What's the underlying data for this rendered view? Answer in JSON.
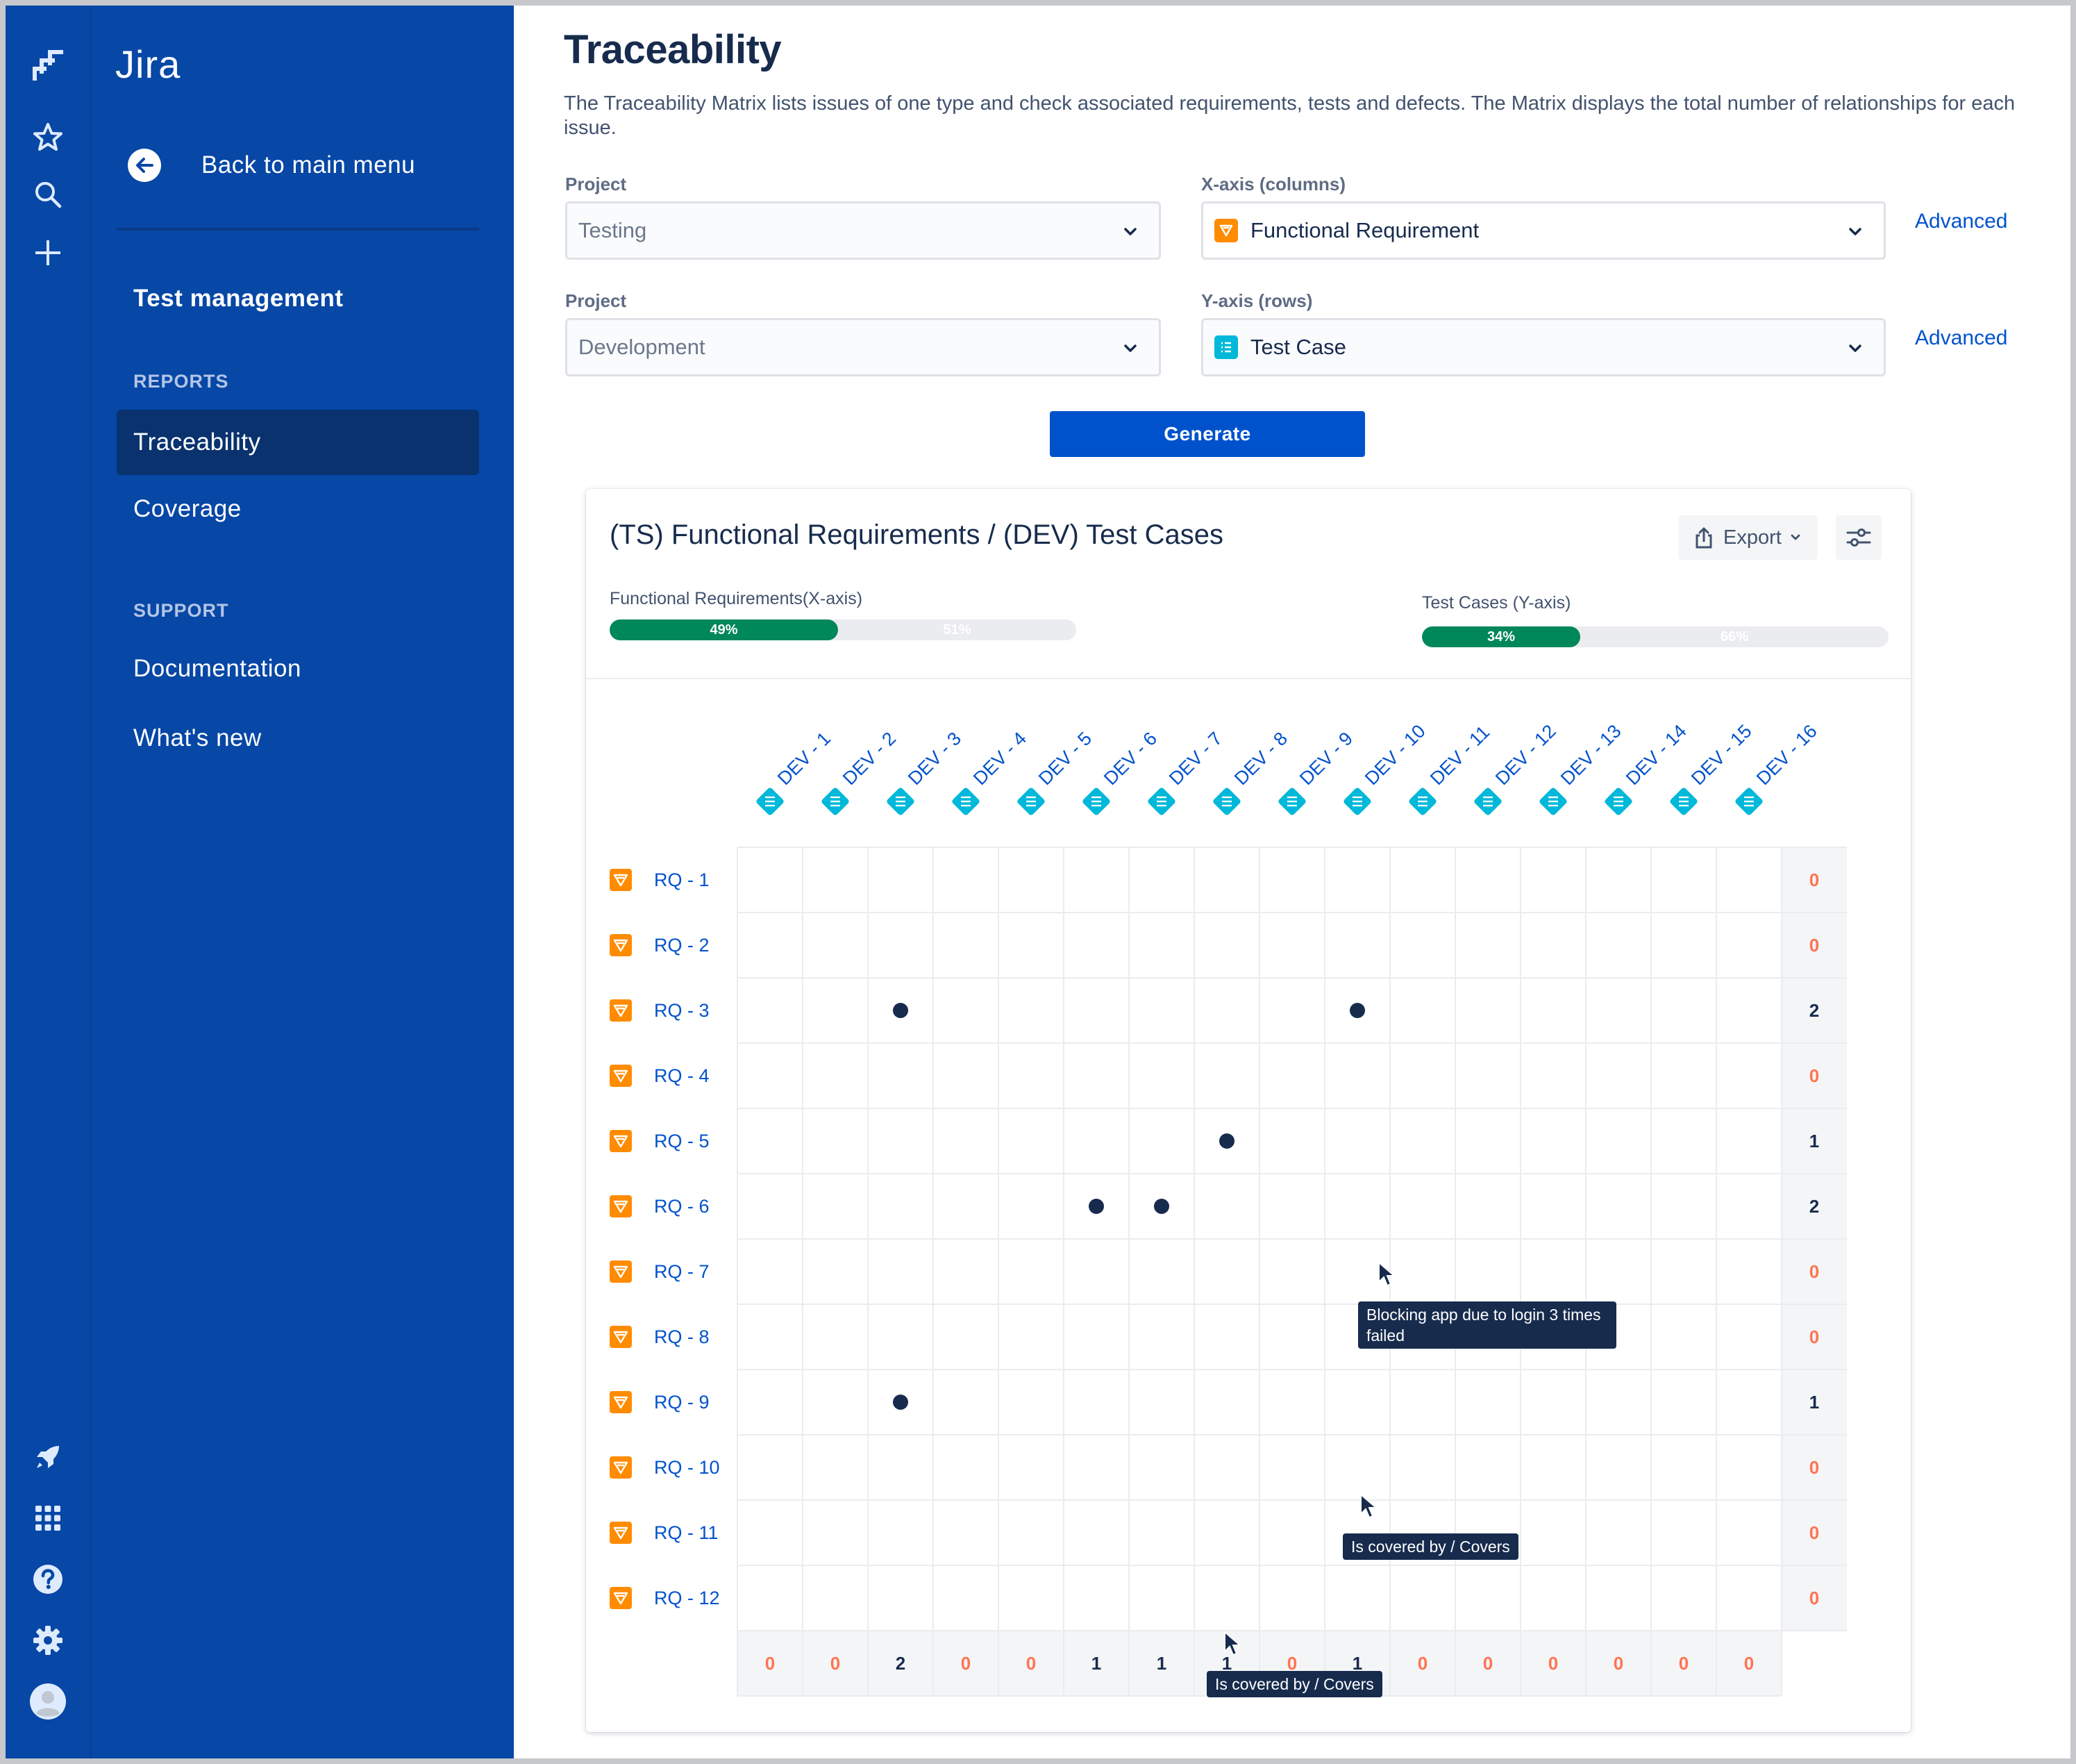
{
  "app": {
    "product_name": "Jira",
    "accent": "#0747a6",
    "primary": "#0052cc"
  },
  "rail": {
    "top_icons": [
      "jira-logo-icon",
      "star-icon",
      "search-icon",
      "plus-icon"
    ],
    "bottom_icons": [
      "rocket-icon",
      "app-switcher-icon",
      "help-icon",
      "gear-icon",
      "avatar-icon"
    ]
  },
  "sidebar": {
    "back_label": "Back to main menu",
    "title": "Test management",
    "reports_heading": "REPORTS",
    "reports": [
      {
        "label": "Traceability",
        "active": true
      },
      {
        "label": "Coverage",
        "active": false
      }
    ],
    "support_heading": "SUPPORT",
    "support": [
      {
        "label": "Documentation"
      },
      {
        "label": "What's new"
      }
    ]
  },
  "page": {
    "title": "Traceability",
    "description": "The Traceability Matrix lists issues of one type and check associated requirements, tests and defects. The Matrix displays the total number of relationships for each issue."
  },
  "form": {
    "project1": {
      "label": "Project",
      "value": "Testing"
    },
    "xaxis": {
      "label": "X-axis (columns)",
      "value": "Functional Requirement",
      "icon": "functional-requirement-icon",
      "icon_color": "#ff8b00"
    },
    "project2": {
      "label": "Project",
      "value": "Development"
    },
    "yaxis": {
      "label": "Y-axis (rows)",
      "value": "Test Case",
      "icon": "test-case-icon",
      "icon_color": "#00b8d9"
    },
    "advanced_label": "Advanced",
    "generate_label": "Generate"
  },
  "report": {
    "title": "(TS) Functional Requirements / (DEV) Test Cases",
    "export_label": "Export",
    "x_progress": {
      "label": "Functional Requirements(X-axis)",
      "covered_pct": 49,
      "covered_text": "49%",
      "uncovered_text": "51%"
    },
    "y_progress": {
      "label": "Test Cases (Y-axis)",
      "covered_pct": 34,
      "covered_text": "34%",
      "uncovered_text": "66%"
    },
    "matrix": {
      "columns": [
        "DEV - 1",
        "DEV - 2",
        "DEV - 3",
        "DEV - 4",
        "DEV - 5",
        "DEV - 6",
        "DEV - 7",
        "DEV - 8",
        "DEV - 9",
        "DEV - 10",
        "DEV - 11",
        "DEV - 12",
        "DEV - 13",
        "DEV - 14",
        "DEV - 15",
        "DEV - 16"
      ],
      "rows": [
        "RQ - 1",
        "RQ - 2",
        "RQ - 3",
        "RQ - 4",
        "RQ - 5",
        "RQ - 6",
        "RQ - 7",
        "RQ - 8",
        "RQ - 9",
        "RQ - 10",
        "RQ - 11",
        "RQ - 12"
      ],
      "links": [
        {
          "row": 2,
          "col": 2
        },
        {
          "row": 2,
          "col": 9
        },
        {
          "row": 4,
          "col": 7
        },
        {
          "row": 5,
          "col": 5
        },
        {
          "row": 5,
          "col": 6
        },
        {
          "row": 8,
          "col": 2
        }
      ],
      "row_totals": [
        "0",
        "0",
        "2",
        "0",
        "1",
        "2",
        "0",
        "0",
        "1",
        "0",
        "0",
        "0"
      ],
      "col_totals": [
        "0",
        "0",
        "2",
        "0",
        "0",
        "1",
        "1",
        "1",
        "0",
        "1",
        "0",
        "0",
        "0",
        "0",
        "0",
        "0"
      ]
    },
    "tooltips": {
      "column": "Blocking app due to login 3 times failed",
      "cell1": "Is covered by / Covers",
      "cell2": "Is covered by / Covers"
    }
  }
}
